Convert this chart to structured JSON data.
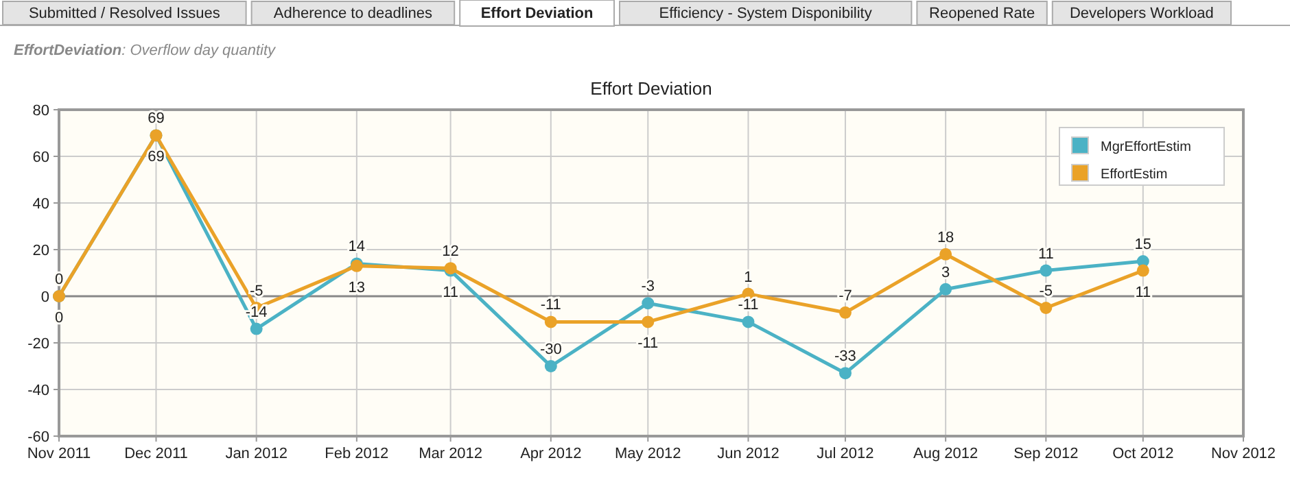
{
  "chart_data": {
    "type": "line",
    "title": "Effort Deviation",
    "subtitle": "EffortDeviation: Overflow day quantity",
    "annotations": [
      "Submitted / Resolved Issues",
      "Adherence to deadlines",
      "Effort Deviation",
      "Efficiency - System Disponibility",
      "Reopened Rate",
      "Developers Workload"
    ],
    "x": [
      "2011-11",
      "2011-12",
      "2012-01",
      "2012-02",
      "2012-03",
      "2012-04",
      "2012-05",
      "2012-06",
      "2012-07",
      "2012-08",
      "2012-09",
      "2012-10"
    ],
    "series": [
      {
        "name": "MgrEffortEstim",
        "color": "#4bb2c5",
        "values": [
          0,
          69,
          -14,
          14,
          11,
          -30,
          -3,
          -11,
          -33,
          3,
          11,
          15
        ]
      },
      {
        "name": "EffortEstim",
        "color": "#eaa228",
        "values": [
          0,
          69,
          -5,
          13,
          12,
          -11,
          -11,
          1,
          -7,
          18,
          -5,
          11
        ]
      }
    ],
    "xlim": [
      "2011-11",
      "2012-11"
    ],
    "xticks": [
      {
        "value": "2011-11",
        "label": "Nov 2011"
      },
      {
        "value": "2011-12",
        "label": "Dec 2011"
      },
      {
        "value": "2012-01",
        "label": "Jan 2012"
      },
      {
        "value": "2012-02",
        "label": "Feb 2012"
      },
      {
        "value": "2012-03",
        "label": "Mar 2012"
      },
      {
        "value": "2012-04",
        "label": "Apr 2012"
      },
      {
        "value": "2012-05",
        "label": "May 2012"
      },
      {
        "value": "2012-06",
        "label": "Jun 2012"
      },
      {
        "value": "2012-07",
        "label": "Jul 2012"
      },
      {
        "value": "2012-08",
        "label": "Aug 2012"
      },
      {
        "value": "2012-09",
        "label": "Sep 2012"
      },
      {
        "value": "2012-10",
        "label": "Oct 2012"
      },
      {
        "value": "2012-11",
        "label": "Nov 2012"
      }
    ],
    "ylim": [
      -60,
      80
    ],
    "yticks": [
      -60,
      -40,
      -20,
      0,
      20,
      40,
      60,
      80
    ],
    "ref_lines": [
      {
        "axis": "y",
        "value": 0,
        "color": "#888888"
      }
    ],
    "grid": true,
    "legend": "top right",
    "marker": "circle",
    "line_style": "solid",
    "data_labels": true
  }
}
